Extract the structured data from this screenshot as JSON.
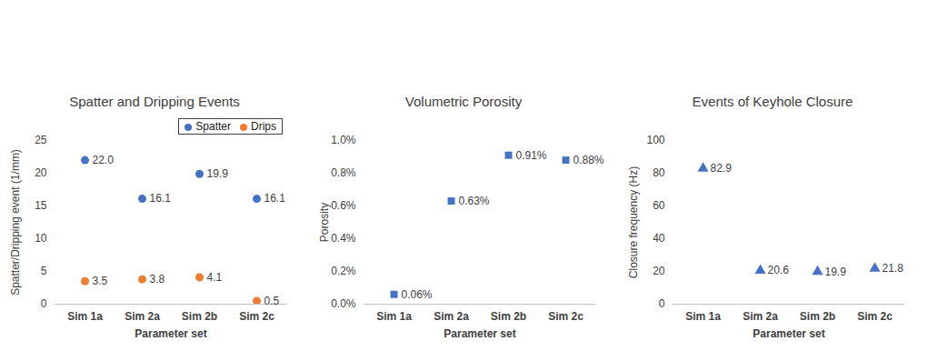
{
  "chart_data": [
    {
      "type": "scatter",
      "title": "Spatter and Dripping Events",
      "x_label": "Parameter set",
      "y_label": "Spatter/Dripping event (1/mm)",
      "categories": [
        "Sim 1a",
        "Sim 2a",
        "Sim 2b",
        "Sim 2c"
      ],
      "series": [
        {
          "name": "Spatter",
          "color": "#4472c4",
          "marker": "circle",
          "values": [
            22.0,
            16.1,
            19.9,
            16.1
          ],
          "value_labels": [
            "22.0",
            "16.1",
            "19.9",
            "16.1"
          ]
        },
        {
          "name": "Drips",
          "color": "#ed7d31",
          "marker": "circle",
          "values": [
            3.5,
            3.8,
            4.1,
            0.5
          ],
          "value_labels": [
            "3.5",
            "3.8",
            "4.1",
            "0.5"
          ]
        }
      ],
      "ylim": [
        0,
        25
      ],
      "yticks": [
        0,
        5,
        10,
        15,
        20,
        25
      ],
      "grid": false,
      "legend": "top-right",
      "data_labels": true
    },
    {
      "type": "scatter",
      "title": "Volumetric Porosity",
      "x_label": "Parameter set",
      "y_label": "Porosity",
      "categories": [
        "Sim 1a",
        "Sim 2a",
        "Sim 2b",
        "Sim 2c"
      ],
      "values": [
        0.06,
        0.63,
        0.91,
        0.88
      ],
      "value_labels": [
        "0.06%",
        "0.63%",
        "0.91%",
        "0.88%"
      ],
      "color": "#4472c4",
      "marker": "square",
      "ylim": [
        0,
        1.0
      ],
      "yticks": [
        {
          "value": 0,
          "label": "0.0%"
        },
        {
          "value": 0.2,
          "label": "0.2%"
        },
        {
          "value": 0.4,
          "label": "0.4%"
        },
        {
          "value": 0.6,
          "label": "0.6%"
        },
        {
          "value": 0.8,
          "label": "0.8%"
        },
        {
          "value": 1.0,
          "label": "1.0%"
        }
      ],
      "grid": false,
      "data_labels": true
    },
    {
      "type": "scatter",
      "title": "Events of Keyhole Closure",
      "x_label": "Parameter set",
      "y_label": "Closure frequency (Hz)",
      "categories": [
        "Sim 1a",
        "Sim 2a",
        "Sim 2b",
        "Sim 2c"
      ],
      "values": [
        82.9,
        20.6,
        19.9,
        21.8
      ],
      "color": "#4472c4",
      "marker": "triangle",
      "ylim": [
        0,
        100
      ],
      "yticks": [
        0,
        20,
        40,
        60,
        80,
        100
      ],
      "grid": false,
      "data_labels": true
    }
  ]
}
